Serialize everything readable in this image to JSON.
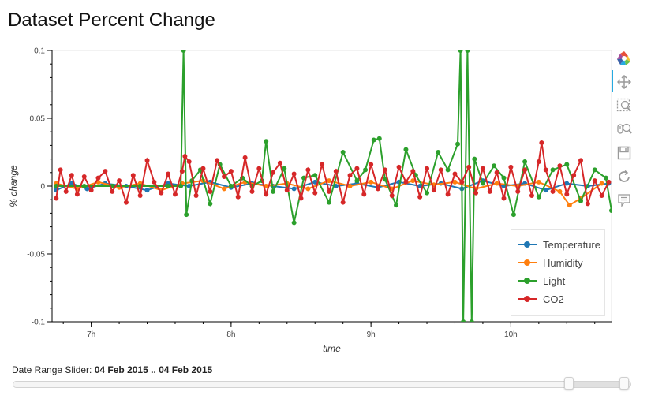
{
  "title": "Dataset Percent Change",
  "chart_data": {
    "type": "line",
    "title": "Dataset Percent Change",
    "xlabel": "time",
    "ylabel": "% change",
    "x_unit": "hours of 04 Feb 2015",
    "xlim": [
      6.72,
      10.72
    ],
    "ylim": [
      -0.1,
      0.1
    ],
    "xticks": [
      7,
      8,
      9,
      10
    ],
    "xtick_labels": [
      "7h",
      "8h",
      "9h",
      "10h"
    ],
    "yticks": [
      -0.1,
      -0.05,
      0,
      0.05,
      0.1
    ],
    "ytick_labels": [
      "-0.1",
      "-0.05",
      "0",
      "0.05",
      "0.1"
    ],
    "grid": false,
    "legend": "bottom-right",
    "series": [
      {
        "name": "Temperature",
        "color": "#1f77b4",
        "x": [
          6.75,
          6.86,
          6.97,
          7.1,
          7.25,
          7.4,
          7.55,
          7.7,
          7.85,
          8.0,
          8.15,
          8.3,
          8.45,
          8.6,
          8.75,
          8.9,
          9.05,
          9.2,
          9.35,
          9.5,
          9.65,
          9.8,
          9.95,
          10.1,
          10.25,
          10.4,
          10.55,
          10.7
        ],
        "y": [
          -0.003,
          0.002,
          -0.002,
          0.002,
          0,
          -0.003,
          0.002,
          0,
          0.003,
          -0.001,
          0.002,
          0,
          -0.002,
          0.003,
          0,
          0.002,
          -0.001,
          0.003,
          0,
          0.002,
          -0.002,
          0.004,
          0,
          0.002,
          -0.003,
          0.002,
          0,
          0.002
        ]
      },
      {
        "name": "Humidity",
        "color": "#ff7f0e",
        "x": [
          6.75,
          6.9,
          7.05,
          7.2,
          7.35,
          7.5,
          7.65,
          7.8,
          7.95,
          8.1,
          8.25,
          8.4,
          8.55,
          8.7,
          8.85,
          9.0,
          9.15,
          9.3,
          9.45,
          9.6,
          9.75,
          9.9,
          10.05,
          10.2,
          10.35,
          10.42,
          10.5,
          10.65
        ],
        "y": [
          0.002,
          -0.002,
          0.003,
          -0.001,
          0.002,
          -0.003,
          0.002,
          0.004,
          -0.002,
          0.003,
          0,
          0.002,
          -0.002,
          0.004,
          0,
          0.003,
          -0.002,
          0.004,
          0.001,
          0.003,
          -0.002,
          0.002,
          0,
          0.003,
          -0.004,
          -0.014,
          -0.009,
          0.002
        ]
      },
      {
        "name": "Light",
        "color": "#2ca02c",
        "x": [
          6.75,
          6.95,
          7.15,
          7.35,
          7.55,
          7.64,
          7.66,
          7.68,
          7.72,
          7.78,
          7.85,
          7.92,
          8.0,
          8.08,
          8.15,
          8.22,
          8.25,
          8.3,
          8.38,
          8.45,
          8.52,
          8.6,
          8.7,
          8.8,
          8.9,
          8.96,
          9.02,
          9.06,
          9.1,
          9.18,
          9.25,
          9.32,
          9.4,
          9.48,
          9.55,
          9.62,
          9.64,
          9.66,
          9.69,
          9.72,
          9.74,
          9.8,
          9.88,
          9.95,
          10.02,
          10.1,
          10.2,
          10.3,
          10.4,
          10.5,
          10.6,
          10.68,
          10.72
        ],
        "y": [
          0,
          0,
          0,
          0,
          0,
          0,
          0.1,
          -0.021,
          0.004,
          0.012,
          -0.013,
          0.016,
          0,
          0.006,
          0,
          0.004,
          0.033,
          -0.004,
          0.013,
          -0.027,
          0.006,
          0.008,
          -0.012,
          0.025,
          0.004,
          0.012,
          0.034,
          0.035,
          0.005,
          -0.014,
          0.027,
          0.008,
          -0.005,
          0.025,
          0.012,
          0.031,
          0.1,
          -0.1,
          0.1,
          -0.1,
          0.02,
          0.002,
          0.015,
          0.006,
          -0.021,
          0.018,
          -0.008,
          0.012,
          0.016,
          -0.011,
          0.012,
          0.006,
          -0.018
        ]
      },
      {
        "name": "CO2",
        "color": "#d62728",
        "x": [
          6.75,
          6.78,
          6.82,
          6.86,
          6.9,
          6.95,
          7.0,
          7.05,
          7.1,
          7.15,
          7.2,
          7.25,
          7.3,
          7.35,
          7.4,
          7.45,
          7.5,
          7.55,
          7.6,
          7.65,
          7.67,
          7.7,
          7.75,
          7.8,
          7.85,
          7.9,
          7.95,
          8.0,
          8.05,
          8.1,
          8.15,
          8.2,
          8.25,
          8.3,
          8.35,
          8.4,
          8.45,
          8.5,
          8.55,
          8.6,
          8.65,
          8.7,
          8.75,
          8.8,
          8.85,
          8.9,
          8.95,
          9.0,
          9.05,
          9.1,
          9.15,
          9.2,
          9.25,
          9.3,
          9.35,
          9.4,
          9.45,
          9.5,
          9.55,
          9.6,
          9.65,
          9.7,
          9.75,
          9.8,
          9.85,
          9.9,
          9.95,
          10.0,
          10.05,
          10.1,
          10.15,
          10.2,
          10.22,
          10.25,
          10.3,
          10.35,
          10.4,
          10.45,
          10.5,
          10.55,
          10.6,
          10.65,
          10.7
        ],
        "y": [
          -0.009,
          0.012,
          -0.004,
          0.008,
          -0.006,
          0.007,
          -0.003,
          0.006,
          0.011,
          -0.004,
          0.004,
          -0.012,
          0.008,
          -0.007,
          0.019,
          0.003,
          -0.005,
          0.009,
          -0.006,
          0.011,
          0.022,
          0.018,
          -0.007,
          0.013,
          -0.004,
          0.019,
          0.007,
          0.011,
          -0.008,
          0.021,
          -0.004,
          0.013,
          -0.006,
          0.01,
          0.017,
          -0.003,
          0.009,
          -0.009,
          0.012,
          -0.005,
          0.016,
          -0.004,
          0.011,
          -0.012,
          0.008,
          0.013,
          -0.006,
          0.016,
          -0.002,
          0.012,
          -0.007,
          0.014,
          0.003,
          0.011,
          -0.008,
          0.013,
          -0.003,
          0.012,
          -0.006,
          0.009,
          0.003,
          0.014,
          -0.005,
          0.013,
          -0.004,
          0.01,
          -0.009,
          0.014,
          -0.004,
          0.012,
          -0.007,
          0.018,
          0.032,
          0.012,
          -0.004,
          0.015,
          -0.006,
          0.008,
          0.019,
          -0.013,
          0.004,
          -0.007,
          0.003
        ]
      }
    ]
  },
  "toolbar": {
    "tools": [
      {
        "icon": "bokeh-logo-icon",
        "name": "bokeh-logo"
      },
      {
        "icon": "pan-icon",
        "name": "pan-tool"
      },
      {
        "icon": "box-zoom-icon",
        "name": "box-zoom-tool"
      },
      {
        "icon": "wheel-zoom-icon",
        "name": "wheel-zoom-tool"
      },
      {
        "icon": "save-icon",
        "name": "save-tool"
      },
      {
        "icon": "reset-icon",
        "name": "reset-tool"
      },
      {
        "icon": "hover-icon",
        "name": "hover-tool"
      }
    ]
  },
  "slider": {
    "label": "Date Range Slider:",
    "value": "04 Feb 2015 .. 04 Feb 2015",
    "range_start_fraction": 0.9,
    "range_end_fraction": 0.99
  }
}
